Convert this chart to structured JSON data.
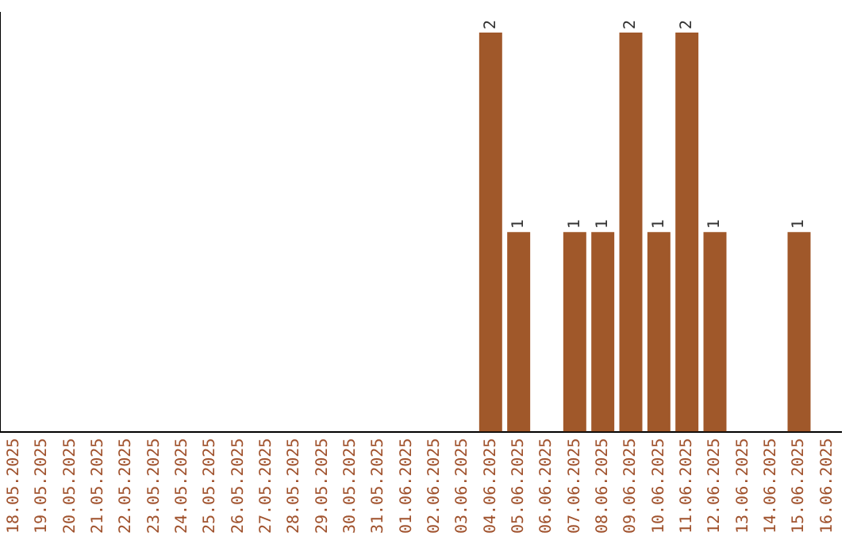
{
  "chart_data": {
    "type": "bar",
    "categories": [
      "18.05.2025",
      "19.05.2025",
      "20.05.2025",
      "21.05.2025",
      "22.05.2025",
      "23.05.2025",
      "24.05.2025",
      "25.05.2025",
      "26.05.2025",
      "27.05.2025",
      "28.05.2025",
      "29.05.2025",
      "30.05.2025",
      "31.05.2025",
      "01.06.2025",
      "02.06.2025",
      "03.06.2025",
      "04.06.2025",
      "05.06.2025",
      "06.06.2025",
      "07.06.2025",
      "08.06.2025",
      "09.06.2025",
      "10.06.2025",
      "11.06.2025",
      "12.06.2025",
      "13.06.2025",
      "14.06.2025",
      "15.06.2025",
      "16.06.2025"
    ],
    "values": [
      null,
      null,
      null,
      null,
      null,
      null,
      null,
      null,
      null,
      null,
      null,
      null,
      null,
      null,
      null,
      null,
      null,
      2,
      1,
      null,
      1,
      1,
      2,
      1,
      2,
      1,
      null,
      null,
      1,
      null
    ],
    "color": "#a0582a",
    "ylim": [
      0,
      2.1
    ],
    "data_labels": true,
    "tick_labels": "x",
    "grid": false
  }
}
